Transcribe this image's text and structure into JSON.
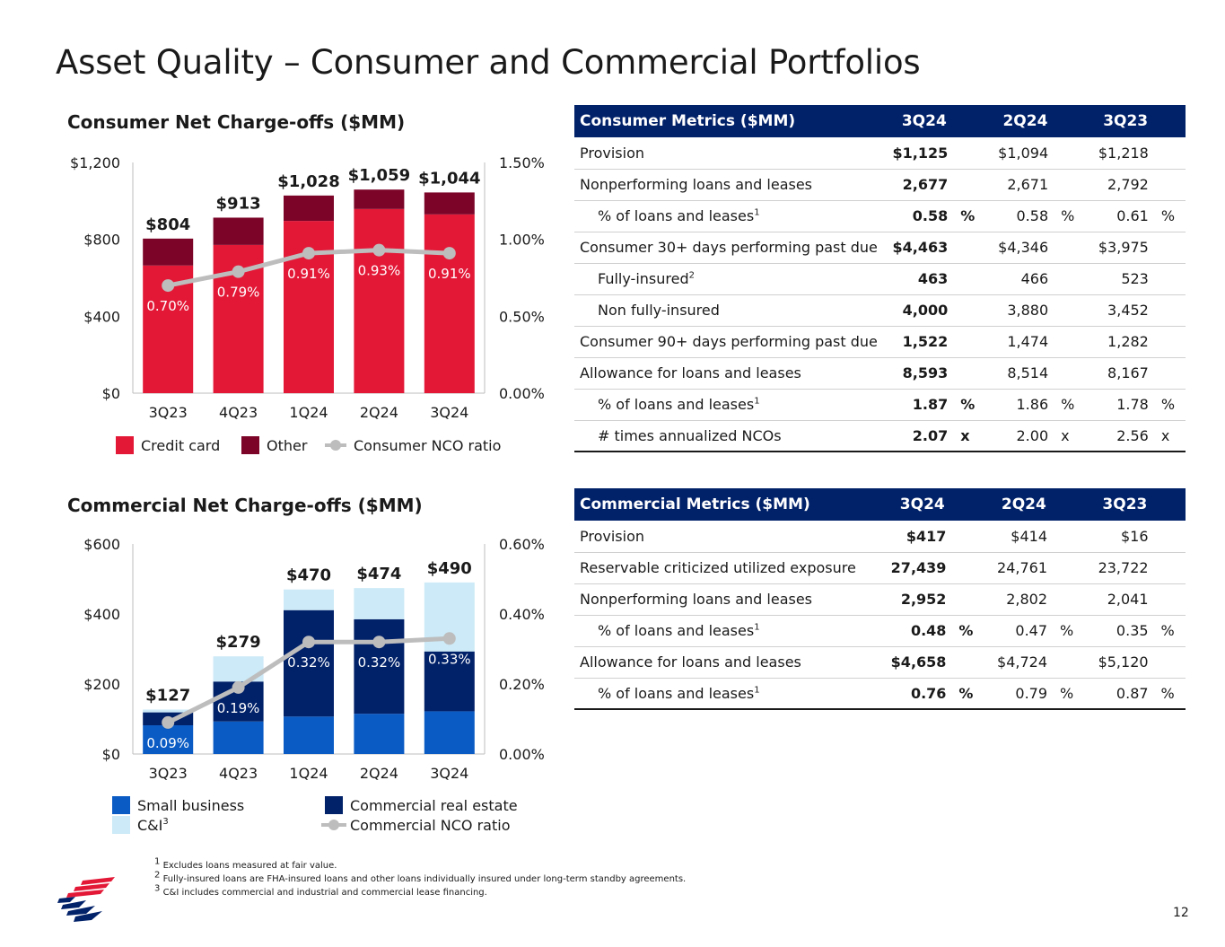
{
  "title": "Asset Quality – Consumer and Commercial Portfolios",
  "page_number": "12",
  "colors": {
    "credit_card": "#e31837",
    "other": "#7b0428",
    "consumer_ratio": "#bdbdbd",
    "small_business": "#0a5bc4",
    "cre": "#012169",
    "ci": "#cceaf7",
    "commercial_ratio": "#bdbdbd",
    "table_header": "#012169"
  },
  "chart_data": [
    {
      "type": "bar",
      "title": "Consumer Net Charge-offs ($MM)",
      "stacked": true,
      "categories": [
        "3Q23",
        "4Q23",
        "1Q24",
        "2Q24",
        "3Q24"
      ],
      "series": [
        {
          "name": "Credit card",
          "values": [
            664,
            771,
            896,
            958,
            930
          ]
        },
        {
          "name": "Other",
          "values": [
            140,
            142,
            132,
            101,
            114
          ]
        }
      ],
      "totals": [
        804,
        913,
        1028,
        1059,
        1044
      ],
      "total_labels": [
        "$804",
        "$913",
        "$1,028",
        "$1,059",
        "$1,044"
      ],
      "ratio_series": {
        "name": "Consumer NCO ratio",
        "values": [
          0.7,
          0.79,
          0.91,
          0.93,
          0.91
        ],
        "labels": [
          "0.70%",
          "0.79%",
          "0.91%",
          "0.93%",
          "0.91%"
        ],
        "ylim": [
          0,
          1.5
        ]
      },
      "ylim": [
        0,
        1200
      ],
      "y_ticks": [
        "$0",
        "$400",
        "$800",
        "$1,200"
      ],
      "y2_ticks": [
        "0.00%",
        "0.50%",
        "1.00%",
        "1.50%"
      ],
      "legend": [
        "Credit card",
        "Other",
        "Consumer NCO ratio"
      ]
    },
    {
      "type": "bar",
      "title": "Commercial Net Charge-offs ($MM)",
      "stacked": true,
      "categories": [
        "3Q23",
        "4Q23",
        "1Q24",
        "2Q24",
        "3Q24"
      ],
      "series": [
        {
          "name": "Small business",
          "values": [
            82,
            93,
            107,
            115,
            122
          ]
        },
        {
          "name": "Commercial real estate",
          "values": [
            37,
            114,
            304,
            270,
            171
          ]
        },
        {
          "name": "C&I",
          "values": [
            8,
            72,
            59,
            89,
            197
          ]
        }
      ],
      "totals": [
        127,
        279,
        470,
        474,
        490
      ],
      "total_labels": [
        "$127",
        "$279",
        "$470",
        "$474",
        "$490"
      ],
      "ratio_series": {
        "name": "Commercial NCO ratio",
        "values": [
          0.09,
          0.19,
          0.32,
          0.32,
          0.33
        ],
        "labels": [
          "0.09%",
          "0.19%",
          "0.32%",
          "0.32%",
          "0.33%"
        ],
        "ylim": [
          0,
          0.6
        ]
      },
      "ylim": [
        0,
        600
      ],
      "y_ticks": [
        "$0",
        "$200",
        "$400",
        "$600"
      ],
      "y2_ticks": [
        "0.00%",
        "0.20%",
        "0.40%",
        "0.60%"
      ],
      "legend": [
        "Small business",
        "C&I",
        "Commercial real estate",
        "Commercial NCO ratio"
      ],
      "legend_superscripts": {
        "C&I": "3"
      }
    }
  ],
  "consumer_table": {
    "header": [
      "Consumer Metrics ($MM)",
      "3Q24",
      "2Q24",
      "3Q23"
    ],
    "rows": [
      {
        "label": "Provision",
        "sup": "",
        "indent": false,
        "v1": "$1,125",
        "v2": "$1,094",
        "v3": "$1,218",
        "unit": ""
      },
      {
        "label": "Nonperforming loans and leases",
        "sup": "",
        "indent": false,
        "v1": "2,677",
        "v2": "2,671",
        "v3": "2,792",
        "unit": ""
      },
      {
        "label": "% of loans and leases",
        "sup": "1",
        "indent": true,
        "v1": "0.58",
        "v2": "0.58",
        "v3": "0.61",
        "unit": "%"
      },
      {
        "label": "Consumer 30+ days performing past due",
        "sup": "",
        "indent": false,
        "v1": "$4,463",
        "v2": "$4,346",
        "v3": "$3,975",
        "unit": ""
      },
      {
        "label": "Fully-insured",
        "sup": "2",
        "indent": true,
        "v1": "463",
        "v2": "466",
        "v3": "523",
        "unit": ""
      },
      {
        "label": "Non fully-insured",
        "sup": "",
        "indent": true,
        "v1": "4,000",
        "v2": "3,880",
        "v3": "3,452",
        "unit": ""
      },
      {
        "label": "Consumer 90+ days performing past due",
        "sup": "",
        "indent": false,
        "v1": "1,522",
        "v2": "1,474",
        "v3": "1,282",
        "unit": ""
      },
      {
        "label": "Allowance for loans and leases",
        "sup": "",
        "indent": false,
        "v1": "8,593",
        "v2": "8,514",
        "v3": "8,167",
        "unit": ""
      },
      {
        "label": "% of loans and leases",
        "sup": "1",
        "indent": true,
        "v1": "1.87",
        "v2": "1.86",
        "v3": "1.78",
        "unit": "%"
      },
      {
        "label": "# times annualized NCOs",
        "sup": "",
        "indent": true,
        "v1": "2.07",
        "v2": "2.00",
        "v3": "2.56",
        "unit": "x"
      }
    ]
  },
  "commercial_table": {
    "header": [
      "Commercial Metrics ($MM)",
      "3Q24",
      "2Q24",
      "3Q23"
    ],
    "rows": [
      {
        "label": "Provision",
        "sup": "",
        "indent": false,
        "v1": "$417",
        "v2": "$414",
        "v3": "$16",
        "unit": ""
      },
      {
        "label": "Reservable criticized utilized exposure",
        "sup": "",
        "indent": false,
        "v1": "27,439",
        "v2": "24,761",
        "v3": "23,722",
        "unit": ""
      },
      {
        "label": "Nonperforming loans and leases",
        "sup": "",
        "indent": false,
        "v1": "2,952",
        "v2": "2,802",
        "v3": "2,041",
        "unit": ""
      },
      {
        "label": "% of loans and leases",
        "sup": "1",
        "indent": true,
        "v1": "0.48",
        "v2": "0.47",
        "v3": "0.35",
        "unit": "%"
      },
      {
        "label": "Allowance for loans and leases",
        "sup": "",
        "indent": false,
        "v1": "$4,658",
        "v2": "$4,724",
        "v3": "$5,120",
        "unit": ""
      },
      {
        "label": "% of loans and leases",
        "sup": "1",
        "indent": true,
        "v1": "0.76",
        "v2": "0.79",
        "v3": "0.87",
        "unit": "%"
      }
    ]
  },
  "footnotes": [
    {
      "num": "1",
      "text": "Excludes loans measured at fair value."
    },
    {
      "num": "2",
      "text": "Fully-insured loans are FHA-insured loans and other loans individually insured under long-term standby agreements."
    },
    {
      "num": "3",
      "text": "C&I includes commercial and industrial and commercial lease financing."
    }
  ]
}
